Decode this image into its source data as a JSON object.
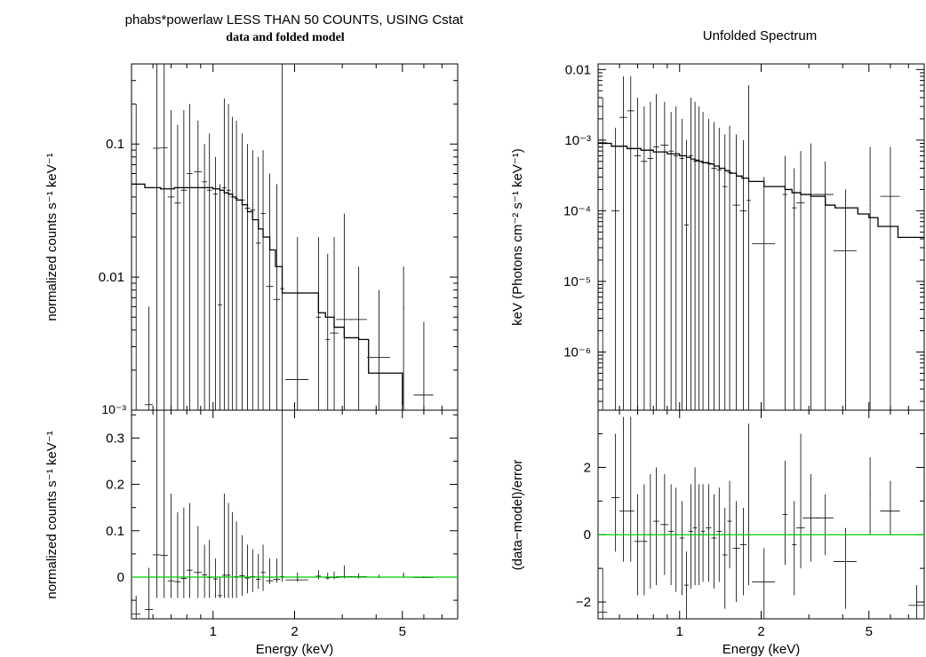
{
  "left_title": "phabs*powerlaw LESS THAN 50 COUNTS, USING Cstat",
  "left_subtitle": "data and folded model",
  "right_title": "Unfolded Spectrum",
  "colors": {
    "data": "#000000",
    "model": "#000000",
    "zero_line": "#00cc00",
    "frame": "#000000"
  },
  "chart_data": [
    {
      "type": "scatter",
      "panel": "left-top",
      "xlabel": "",
      "ylabel": "normalized counts s⁻¹ keV⁻¹",
      "xscale": "log",
      "yscale": "log",
      "xlim": [
        0.5,
        8.0
      ],
      "ylim": [
        0.001,
        0.4
      ],
      "yticks": [
        0.01,
        0.1
      ],
      "ytick_labels": [
        "0.01",
        "0.1"
      ],
      "ymin_label": "10⁻³",
      "series": [
        {
          "name": "",
          "kind": "errorbar",
          "x": [
            0.52,
            0.58,
            0.62,
            0.66,
            0.7,
            0.74,
            0.78,
            0.82,
            0.88,
            0.93,
            0.97,
            1.02,
            1.06,
            1.1,
            1.14,
            1.18,
            1.22,
            1.28,
            1.34,
            1.4,
            1.47,
            1.53,
            1.62,
            1.72,
            1.8,
            2.05,
            2.45,
            2.65,
            2.8,
            3.05,
            3.45,
            4.1,
            5.05,
            6.0
          ],
          "xerr": [
            0.02,
            0.02,
            0.02,
            0.02,
            0.02,
            0.02,
            0.02,
            0.02,
            0.03,
            0.02,
            0.02,
            0.02,
            0.02,
            0.02,
            0.02,
            0.02,
            0.02,
            0.03,
            0.03,
            0.03,
            0.03,
            0.03,
            0.05,
            0.05,
            0.03,
            0.2,
            0.05,
            0.05,
            0.1,
            0.2,
            0.25,
            0.4,
            0.02,
            0.5
          ],
          "y": [
            0.05,
            0.0011,
            0.093,
            0.094,
            0.04,
            0.036,
            0.045,
            0.06,
            0.062,
            0.052,
            0.045,
            0.042,
            0.0062,
            0.047,
            0.045,
            0.04,
            0.039,
            0.038,
            0.033,
            0.032,
            0.018,
            0.03,
            0.0085,
            0.0068,
            0.0082,
            0.0017,
            0.005,
            0.0034,
            0.0038,
            0.0048,
            0.0048,
            0.0025,
            0.0058,
            0.0013
          ],
          "ylo": [
            0.001,
            0.001,
            0.001,
            0.001,
            0.001,
            0.001,
            0.001,
            0.001,
            0.001,
            0.001,
            0.001,
            0.001,
            0.001,
            0.001,
            0.001,
            0.001,
            0.001,
            0.001,
            0.001,
            0.001,
            0.001,
            0.001,
            0.001,
            0.001,
            0.001,
            0.001,
            0.001,
            0.001,
            0.001,
            0.001,
            0.001,
            0.001,
            0.001,
            0.001
          ],
          "yhi": [
            0.2,
            0.006,
            0.4,
            0.4,
            0.18,
            0.14,
            0.18,
            0.2,
            0.15,
            0.1,
            0.12,
            0.08,
            0.05,
            0.22,
            0.2,
            0.16,
            0.15,
            0.12,
            0.1,
            0.09,
            0.08,
            0.09,
            0.06,
            0.05,
            0.4,
            0.02,
            0.02,
            0.015,
            0.02,
            0.03,
            0.012,
            0.008,
            0.012,
            0.0046
          ]
        },
        {
          "name": "",
          "kind": "step",
          "x": [
            0.5,
            0.56,
            0.64,
            0.72,
            0.8,
            0.9,
            1.0,
            1.06,
            1.1,
            1.14,
            1.18,
            1.22,
            1.28,
            1.34,
            1.4,
            1.47,
            1.53,
            1.62,
            1.7,
            1.8,
            2.05,
            2.45,
            2.6,
            2.8,
            3.05,
            3.45,
            3.75,
            4.55,
            5.0
          ],
          "y": [
            0.05,
            0.047,
            0.046,
            0.047,
            0.047,
            0.047,
            0.046,
            0.045,
            0.043,
            0.042,
            0.04,
            0.038,
            0.035,
            0.031,
            0.027,
            0.023,
            0.02,
            0.016,
            0.012,
            0.0076,
            0.0076,
            0.0054,
            0.005,
            0.0042,
            0.0035,
            0.0034,
            0.0019,
            0.0019,
            0.0011
          ]
        }
      ]
    },
    {
      "type": "scatter",
      "panel": "left-bottom",
      "xlabel": "Energy (keV)",
      "ylabel": "normalized counts s⁻¹ keV⁻¹",
      "xscale": "log",
      "yscale": "linear",
      "xlim": [
        0.5,
        8.0
      ],
      "ylim": [
        -0.09,
        0.36
      ],
      "yticks": [
        0,
        0.1,
        0.2,
        0.3
      ],
      "ytick_labels": [
        "0",
        "0.1",
        "0.2",
        "0.3"
      ],
      "xticks": [
        1,
        2,
        5
      ],
      "xtick_labels": [
        "1",
        "2",
        "5"
      ],
      "series": [
        {
          "name": "",
          "kind": "errorbar",
          "x": [
            0.52,
            0.58,
            0.62,
            0.66,
            0.7,
            0.74,
            0.78,
            0.82,
            0.88,
            0.93,
            0.97,
            1.02,
            1.06,
            1.1,
            1.14,
            1.18,
            1.22,
            1.28,
            1.34,
            1.4,
            1.47,
            1.53,
            1.62,
            1.72,
            1.8,
            2.05,
            2.45,
            2.65,
            2.8,
            3.05,
            3.45,
            4.1,
            5.05,
            6.0
          ],
          "xerr": [
            0.02,
            0.02,
            0.02,
            0.02,
            0.02,
            0.02,
            0.02,
            0.02,
            0.03,
            0.02,
            0.02,
            0.02,
            0.02,
            0.02,
            0.02,
            0.02,
            0.02,
            0.03,
            0.03,
            0.03,
            0.03,
            0.03,
            0.05,
            0.05,
            0.03,
            0.2,
            0.05,
            0.05,
            0.1,
            0.2,
            0.25,
            0.4,
            0.02,
            0.5
          ],
          "y": [
            -0.08,
            -0.07,
            0.048,
            0.047,
            -0.008,
            -0.01,
            -0.003,
            0.015,
            0.01,
            0.005,
            -0.001,
            -0.004,
            -0.04,
            0.004,
            0.004,
            0.0,
            0.001,
            0.003,
            -0.002,
            0.001,
            -0.005,
            0.01,
            -0.008,
            -0.005,
            0.001,
            -0.006,
            0.002,
            -0.002,
            -0.001,
            0.001,
            0.001,
            0.0,
            0.005,
            -0.001
          ],
          "ylo": [
            -0.09,
            -0.09,
            -0.045,
            -0.045,
            -0.045,
            -0.045,
            -0.045,
            -0.045,
            -0.045,
            -0.045,
            -0.045,
            -0.045,
            -0.045,
            -0.045,
            -0.045,
            -0.045,
            -0.045,
            -0.04,
            -0.035,
            -0.032,
            -0.025,
            -0.03,
            -0.015,
            -0.012,
            -0.01,
            -0.01,
            -0.005,
            -0.005,
            -0.005,
            -0.003,
            -0.003,
            -0.002,
            -0.002,
            -0.002
          ],
          "yhi": [
            -0.04,
            0.02,
            0.36,
            0.36,
            0.18,
            0.14,
            0.15,
            0.16,
            0.11,
            0.07,
            0.08,
            0.04,
            0.0,
            0.18,
            0.16,
            0.14,
            0.12,
            0.09,
            0.07,
            0.06,
            0.05,
            0.07,
            0.04,
            0.04,
            0.36,
            0.01,
            0.015,
            0.01,
            0.012,
            0.025,
            0.008,
            0.005,
            0.01,
            0.002
          ]
        },
        {
          "name": "",
          "kind": "zero",
          "x": [
            0.5,
            8.0
          ],
          "y": [
            0,
            0
          ]
        }
      ]
    },
    {
      "type": "scatter",
      "panel": "right-top",
      "xlabel": "",
      "ylabel": "keV (Photons cm⁻² s⁻¹ keV⁻¹)",
      "xscale": "log",
      "yscale": "log",
      "xlim": [
        0.5,
        8.0
      ],
      "ylim": [
        1.5e-07,
        0.012
      ],
      "yticks": [
        1e-06,
        1e-05,
        0.0001,
        0.001,
        0.01
      ],
      "ytick_labels": [
        "10⁻⁶",
        "10⁻⁵",
        "10⁻⁴",
        "10⁻³",
        "0.01"
      ],
      "series": [
        {
          "name": "",
          "kind": "errorbar",
          "x": [
            0.52,
            0.58,
            0.62,
            0.66,
            0.7,
            0.74,
            0.78,
            0.82,
            0.88,
            0.93,
            0.97,
            1.02,
            1.06,
            1.1,
            1.14,
            1.18,
            1.22,
            1.28,
            1.34,
            1.4,
            1.47,
            1.53,
            1.62,
            1.72,
            1.8,
            2.05,
            2.45,
            2.65,
            2.8,
            3.05,
            3.45,
            4.1,
            5.05,
            6.0
          ],
          "xerr": [
            0.02,
            0.02,
            0.02,
            0.02,
            0.02,
            0.02,
            0.02,
            0.02,
            0.03,
            0.02,
            0.02,
            0.02,
            0.02,
            0.02,
            0.02,
            0.02,
            0.02,
            0.03,
            0.03,
            0.03,
            0.03,
            0.03,
            0.05,
            0.05,
            0.03,
            0.2,
            0.05,
            0.05,
            0.1,
            0.2,
            0.25,
            0.4,
            0.02,
            0.5
          ],
          "y": [
            0.00092,
            0.0001,
            0.0021,
            0.0026,
            0.0006,
            0.0005,
            0.00055,
            0.0008,
            0.00085,
            0.0007,
            0.0006,
            0.00055,
            6.3e-05,
            0.0006,
            0.0005,
            0.0005,
            0.00048,
            0.00047,
            0.0004,
            0.00038,
            0.00022,
            0.00035,
            0.00012,
            0.0001,
            0.00014,
            3.4e-05,
            0.00017,
            0.00011,
            0.00013,
            0.00017,
            0.00017,
            2.7e-05,
            0.00012,
            0.00016
          ],
          "ylo": [
            1.5e-07,
            1.5e-07,
            1.5e-07,
            1.5e-07,
            1.5e-07,
            1.5e-07,
            1.5e-07,
            1.5e-07,
            1.5e-07,
            1.5e-07,
            1.5e-07,
            1.5e-07,
            1.5e-07,
            1.5e-07,
            1.5e-07,
            1.5e-07,
            1.5e-07,
            1.5e-07,
            1.5e-07,
            1.5e-07,
            1.5e-07,
            1.5e-07,
            1.5e-07,
            1.5e-07,
            1.5e-07,
            1.5e-07,
            1.5e-07,
            1.5e-07,
            1.5e-07,
            1.5e-07,
            1.5e-07,
            1.5e-07,
            1.5e-07,
            1.5e-07
          ],
          "yhi": [
            0.004,
            0.0015,
            0.008,
            0.008,
            0.004,
            0.003,
            0.0035,
            0.0045,
            0.0035,
            0.0025,
            0.003,
            0.002,
            0.001,
            0.004,
            0.0035,
            0.003,
            0.0025,
            0.002,
            0.0018,
            0.0015,
            0.0012,
            0.0016,
            0.0012,
            0.001,
            0.006,
            0.0003,
            0.0006,
            0.0004,
            0.0007,
            0.0009,
            0.0005,
            0.0002,
            0.0008,
            0.0008
          ]
        },
        {
          "name": "",
          "kind": "step",
          "x": [
            0.5,
            0.56,
            0.64,
            0.72,
            0.8,
            0.9,
            1.0,
            1.06,
            1.1,
            1.14,
            1.18,
            1.22,
            1.28,
            1.34,
            1.4,
            1.47,
            1.53,
            1.62,
            1.7,
            1.8,
            2.05,
            2.45,
            2.6,
            2.8,
            3.05,
            3.45,
            3.75,
            4.55,
            5.0,
            5.4,
            6.4,
            8.0
          ],
          "y": [
            0.0009,
            0.00082,
            0.00076,
            0.00072,
            0.00068,
            0.00064,
            0.0006,
            0.00057,
            0.00054,
            0.00052,
            0.0005,
            0.00048,
            0.00046,
            0.00043,
            0.0004,
            0.00037,
            0.00034,
            0.00031,
            0.00029,
            0.00026,
            0.00022,
            0.0002,
            0.00018,
            0.00017,
            0.00016,
            0.00012,
            0.00011,
            9e-05,
            8e-05,
            6e-05,
            4.2e-05,
            4.2e-05
          ]
        }
      ]
    },
    {
      "type": "scatter",
      "panel": "right-bottom",
      "xlabel": "Energy (keV)",
      "ylabel": "(data−model)/error",
      "xscale": "log",
      "yscale": "linear",
      "xlim": [
        0.5,
        8.0
      ],
      "ylim": [
        -2.5,
        3.7
      ],
      "yticks": [
        -2,
        0,
        2
      ],
      "ytick_labels": [
        "−2",
        "0",
        "2"
      ],
      "xticks": [
        1,
        2,
        5
      ],
      "xtick_labels": [
        "1",
        "2",
        "5"
      ],
      "series": [
        {
          "name": "",
          "kind": "errorbar",
          "x": [
            0.52,
            0.58,
            0.62,
            0.66,
            0.7,
            0.74,
            0.78,
            0.82,
            0.88,
            0.93,
            0.97,
            1.02,
            1.06,
            1.1,
            1.14,
            1.18,
            1.22,
            1.28,
            1.34,
            1.4,
            1.47,
            1.53,
            1.62,
            1.72,
            1.8,
            2.05,
            2.45,
            2.65,
            2.8,
            3.05,
            3.45,
            4.1,
            5.05,
            6.0,
            7.5
          ],
          "xerr": [
            0.02,
            0.02,
            0.02,
            0.02,
            0.02,
            0.02,
            0.02,
            0.02,
            0.03,
            0.02,
            0.02,
            0.02,
            0.02,
            0.02,
            0.02,
            0.02,
            0.02,
            0.03,
            0.03,
            0.03,
            0.03,
            0.03,
            0.05,
            0.05,
            0.03,
            0.2,
            0.05,
            0.05,
            0.1,
            0.2,
            0.25,
            0.4,
            0.02,
            0.5,
            0.5
          ],
          "y": [
            -2.3,
            1.1,
            0.7,
            0.7,
            -0.2,
            -0.2,
            0.0,
            0.4,
            0.3,
            0.1,
            0.0,
            -0.1,
            -1.5,
            0.1,
            0.2,
            0.0,
            0.1,
            0.2,
            -0.1,
            0.1,
            -0.6,
            0.4,
            -0.4,
            -0.3,
            0.0,
            -1.4,
            0.6,
            -0.3,
            0.2,
            0.5,
            0.5,
            -0.8,
            1.2,
            0.7,
            -2.1
          ],
          "ylo": [
            -2.5,
            -0.5,
            -0.8,
            -0.8,
            -1.8,
            -1.8,
            -1.6,
            -1.5,
            -1.2,
            -1.5,
            -1.7,
            -1.8,
            -2.5,
            -1.6,
            -1.5,
            -1.5,
            -1.4,
            -1.4,
            -1.6,
            -1.4,
            -2.2,
            -1.0,
            -2.0,
            -1.8,
            -1.5,
            -2.5,
            -0.9,
            -1.8,
            -1.0,
            -0.8,
            -0.6,
            -2.2,
            0.0,
            0.0,
            -2.5
          ],
          "yhi": [
            -1.0,
            3.0,
            3.5,
            3.5,
            1.2,
            1.5,
            1.8,
            2.0,
            1.8,
            1.5,
            1.4,
            1.0,
            -0.5,
            1.5,
            2.0,
            1.5,
            1.5,
            1.5,
            1.2,
            1.4,
            0.8,
            1.6,
            1.0,
            0.8,
            3.3,
            -0.4,
            2.2,
            1.0,
            3.0,
            1.8,
            1.2,
            0.2,
            2.3,
            1.6,
            -1.5
          ]
        },
        {
          "name": "",
          "kind": "zero",
          "x": [
            0.5,
            8.0
          ],
          "y": [
            0,
            0
          ]
        }
      ]
    }
  ]
}
